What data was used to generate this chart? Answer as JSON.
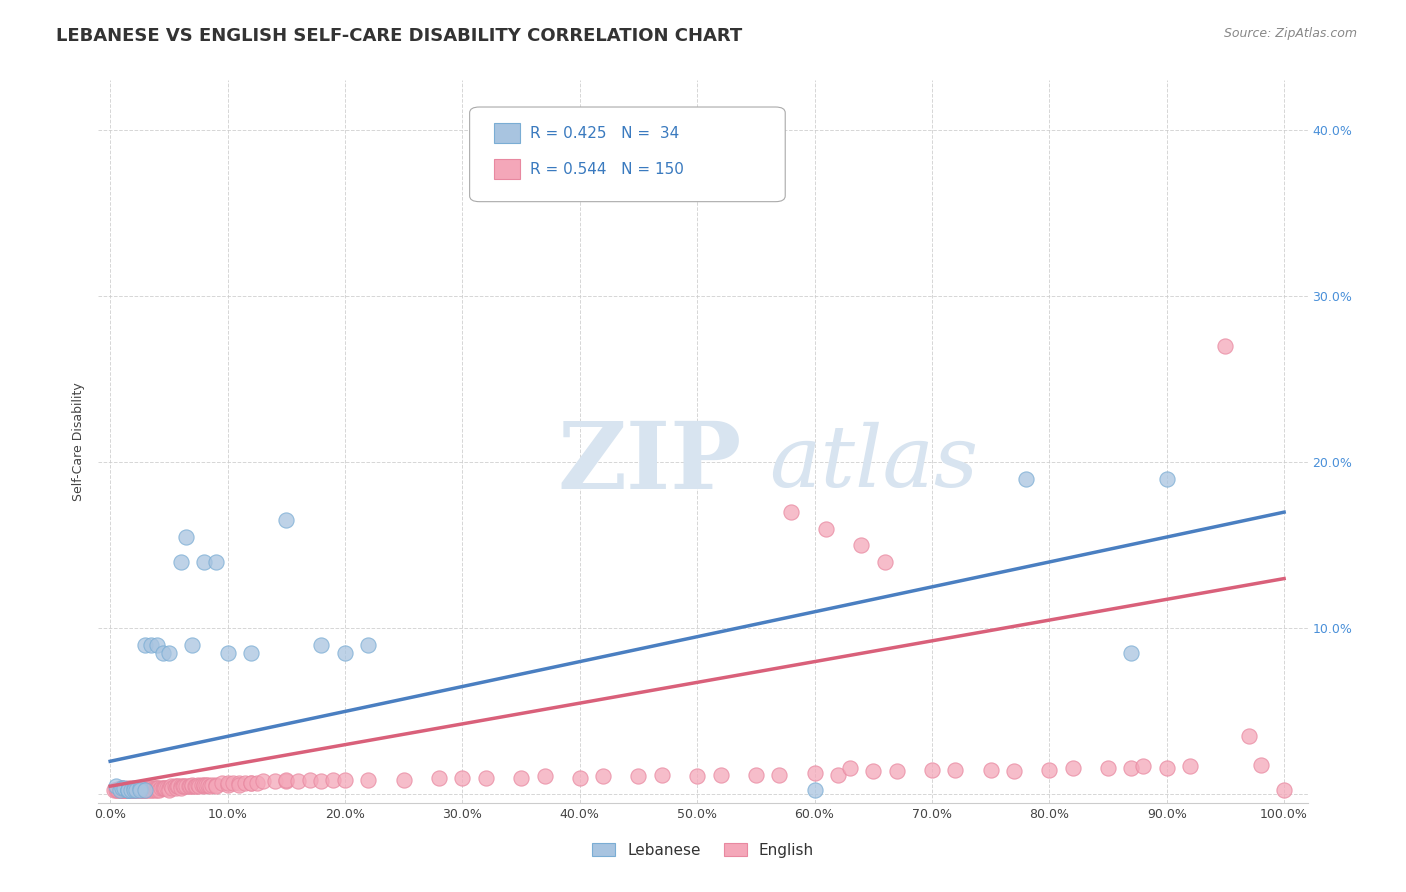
{
  "title": "LEBANESE VS ENGLISH SELF-CARE DISABILITY CORRELATION CHART",
  "source": "Source: ZipAtlas.com",
  "ylabel": "Self-Care Disability",
  "lebanese_color": "#a8c4e0",
  "english_color": "#f4a7b9",
  "lebanese_edge_color": "#7aadd4",
  "english_edge_color": "#e888a0",
  "lebanese_line_color": "#4a7fc1",
  "english_line_color": "#d9607a",
  "background_color": "#ffffff",
  "grid_color": "#cccccc",
  "title_fontsize": 13,
  "label_fontsize": 9,
  "tick_fontsize": 9,
  "watermark_color": "#d8e4f0",
  "legend_text_color": "#3a7abf",
  "right_tick_color": "#4a90d9",
  "ytick_labels": [
    "",
    "10.0%",
    "20.0%",
    "30.0%",
    "40.0%"
  ],
  "ytick_vals": [
    0.0,
    0.1,
    0.2,
    0.3,
    0.4
  ],
  "xtick_vals": [
    0.0,
    0.1,
    0.2,
    0.3,
    0.4,
    0.5,
    0.6,
    0.7,
    0.8,
    0.9,
    1.0
  ],
  "xtick_labels": [
    "0.0%",
    "10.0%",
    "20.0%",
    "30.0%",
    "40.0%",
    "50.0%",
    "60.0%",
    "70.0%",
    "80.0%",
    "90.0%",
    "100.0%"
  ],
  "leb_line_x0": 0.0,
  "leb_line_y0": 0.02,
  "leb_line_x1": 1.0,
  "leb_line_y1": 0.17,
  "eng_line_x0": 0.0,
  "eng_line_y0": 0.005,
  "eng_line_x1": 1.0,
  "eng_line_y1": 0.13,
  "leb_x": [
    0.005,
    0.008,
    0.01,
    0.012,
    0.015,
    0.015,
    0.015,
    0.018,
    0.02,
    0.02,
    0.022,
    0.025,
    0.025,
    0.03,
    0.03,
    0.035,
    0.04,
    0.045,
    0.05,
    0.06,
    0.065,
    0.07,
    0.08,
    0.09,
    0.1,
    0.12,
    0.15,
    0.18,
    0.2,
    0.22,
    0.6,
    0.78,
    0.87,
    0.9
  ],
  "leb_y": [
    0.005,
    0.003,
    0.004,
    0.004,
    0.003,
    0.003,
    0.003,
    0.003,
    0.004,
    0.003,
    0.003,
    0.004,
    0.003,
    0.003,
    0.09,
    0.09,
    0.09,
    0.085,
    0.085,
    0.14,
    0.155,
    0.09,
    0.14,
    0.14,
    0.085,
    0.085,
    0.165,
    0.09,
    0.085,
    0.09,
    0.003,
    0.19,
    0.085,
    0.19
  ],
  "eng_x": [
    0.003,
    0.005,
    0.006,
    0.007,
    0.008,
    0.008,
    0.009,
    0.009,
    0.01,
    0.01,
    0.01,
    0.011,
    0.012,
    0.012,
    0.013,
    0.013,
    0.014,
    0.014,
    0.015,
    0.015,
    0.016,
    0.017,
    0.018,
    0.018,
    0.019,
    0.019,
    0.02,
    0.02,
    0.02,
    0.022,
    0.022,
    0.023,
    0.024,
    0.025,
    0.025,
    0.026,
    0.027,
    0.027,
    0.028,
    0.029,
    0.03,
    0.03,
    0.031,
    0.032,
    0.033,
    0.035,
    0.035,
    0.036,
    0.037,
    0.038,
    0.039,
    0.04,
    0.04,
    0.041,
    0.042,
    0.043,
    0.045,
    0.046,
    0.047,
    0.048,
    0.05,
    0.05,
    0.052,
    0.053,
    0.055,
    0.056,
    0.057,
    0.058,
    0.06,
    0.06,
    0.062,
    0.063,
    0.065,
    0.067,
    0.068,
    0.07,
    0.07,
    0.072,
    0.073,
    0.075,
    0.076,
    0.078,
    0.08,
    0.08,
    0.082,
    0.083,
    0.085,
    0.087,
    0.09,
    0.09,
    0.095,
    0.1,
    0.1,
    0.105,
    0.11,
    0.11,
    0.115,
    0.12,
    0.12,
    0.125,
    0.13,
    0.14,
    0.15,
    0.15,
    0.16,
    0.17,
    0.18,
    0.19,
    0.2,
    0.22,
    0.25,
    0.28,
    0.3,
    0.32,
    0.35,
    0.37,
    0.4,
    0.42,
    0.45,
    0.47,
    0.5,
    0.52,
    0.55,
    0.57,
    0.6,
    0.62,
    0.63,
    0.65,
    0.67,
    0.7,
    0.72,
    0.75,
    0.77,
    0.8,
    0.82,
    0.85,
    0.87,
    0.88,
    0.9,
    0.92,
    0.95,
    0.97,
    0.98,
    1.0,
    0.58,
    0.61,
    0.64,
    0.66
  ],
  "eng_y": [
    0.003,
    0.003,
    0.003,
    0.003,
    0.003,
    0.004,
    0.003,
    0.003,
    0.003,
    0.004,
    0.003,
    0.003,
    0.003,
    0.003,
    0.003,
    0.003,
    0.003,
    0.003,
    0.003,
    0.004,
    0.003,
    0.003,
    0.003,
    0.004,
    0.003,
    0.003,
    0.003,
    0.003,
    0.003,
    0.003,
    0.004,
    0.003,
    0.003,
    0.003,
    0.004,
    0.003,
    0.003,
    0.004,
    0.003,
    0.003,
    0.003,
    0.004,
    0.003,
    0.003,
    0.004,
    0.003,
    0.004,
    0.003,
    0.004,
    0.003,
    0.004,
    0.004,
    0.003,
    0.004,
    0.003,
    0.004,
    0.004,
    0.004,
    0.004,
    0.004,
    0.004,
    0.003,
    0.005,
    0.004,
    0.005,
    0.004,
    0.005,
    0.005,
    0.005,
    0.004,
    0.005,
    0.005,
    0.005,
    0.005,
    0.005,
    0.005,
    0.006,
    0.005,
    0.005,
    0.006,
    0.005,
    0.006,
    0.005,
    0.006,
    0.006,
    0.006,
    0.005,
    0.006,
    0.006,
    0.005,
    0.007,
    0.006,
    0.007,
    0.007,
    0.007,
    0.006,
    0.007,
    0.007,
    0.007,
    0.007,
    0.008,
    0.008,
    0.008,
    0.009,
    0.008,
    0.009,
    0.008,
    0.009,
    0.009,
    0.009,
    0.009,
    0.01,
    0.01,
    0.01,
    0.01,
    0.011,
    0.01,
    0.011,
    0.011,
    0.012,
    0.011,
    0.012,
    0.012,
    0.012,
    0.013,
    0.012,
    0.016,
    0.014,
    0.014,
    0.015,
    0.015,
    0.015,
    0.014,
    0.015,
    0.016,
    0.016,
    0.016,
    0.017,
    0.016,
    0.017,
    0.27,
    0.035,
    0.018,
    0.003,
    0.17,
    0.16,
    0.15,
    0.14
  ]
}
